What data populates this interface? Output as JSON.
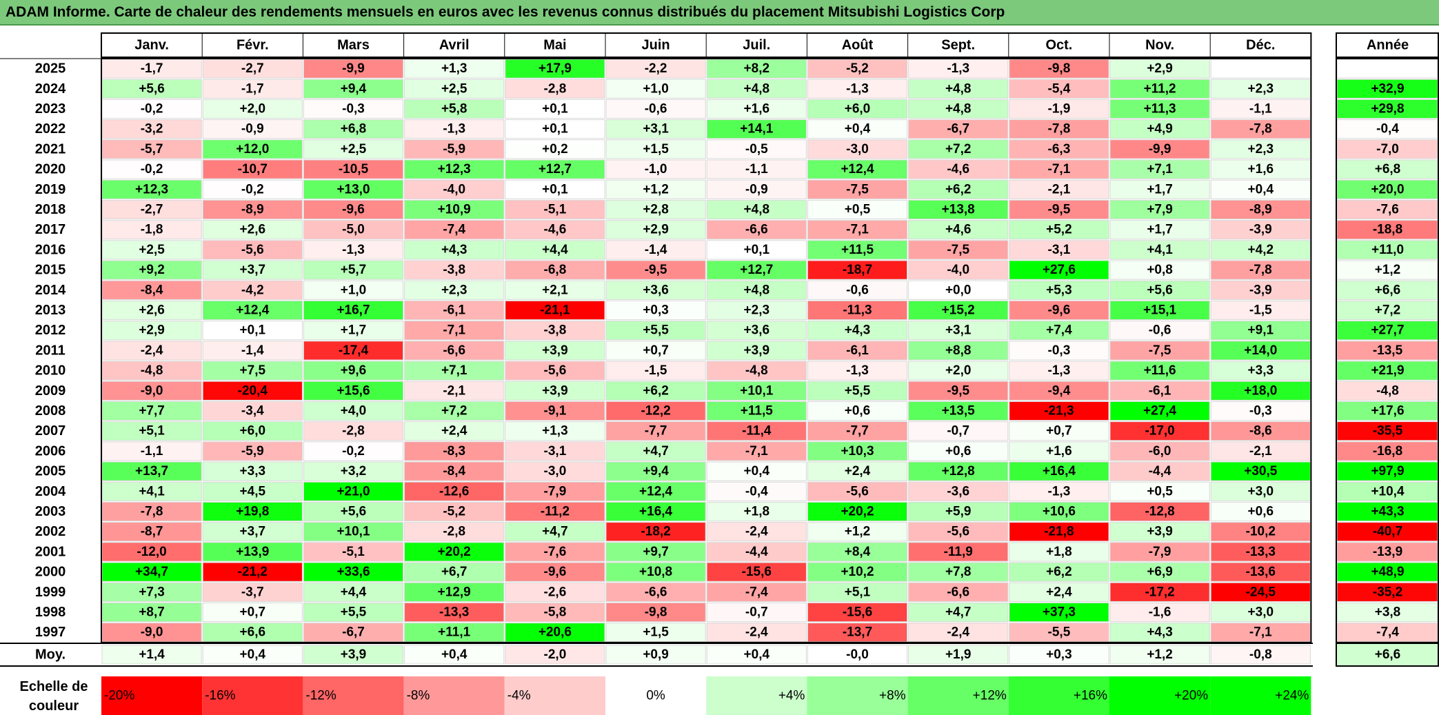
{
  "title": "ADAM Informe. Carte de chaleur des rendements mensuels en euros avec les revenus connus distribués du placement Mitsubishi Logistics Corp",
  "colors": {
    "title_bar": "#7cc97c",
    "negative_max": "#ff0000",
    "neutral": "#ffffff",
    "positive_max": "#00ff00"
  },
  "chart_data": {
    "type": "heatmap",
    "title": "ADAM Informe. Carte de chaleur des rendements mensuels en euros avec les revenus connus distribués du placement Mitsubishi Logistics Corp",
    "months": [
      "Janv.",
      "Févr.",
      "Mars",
      "Avril",
      "Mai",
      "Juin",
      "Juil.",
      "Août",
      "Sept.",
      "Oct.",
      "Nov.",
      "Déc."
    ],
    "annual_header": "Année",
    "rows": [
      {
        "year": "2025",
        "values": [
          "-1,7",
          "-2,7",
          "-9,9",
          "+1,3",
          "+17,9",
          "-2,2",
          "+8,2",
          "-5,2",
          "-1,3",
          "-9,8",
          "+2,9",
          ""
        ],
        "annual": ""
      },
      {
        "year": "2024",
        "values": [
          "+5,6",
          "-1,7",
          "+9,4",
          "+2,5",
          "-2,8",
          "+1,0",
          "+4,8",
          "-1,3",
          "+4,8",
          "-5,4",
          "+11,2",
          "+2,3"
        ],
        "annual": "+32,9"
      },
      {
        "year": "2023",
        "values": [
          "-0,2",
          "+2,0",
          "-0,3",
          "+5,8",
          "+0,1",
          "-0,6",
          "+1,6",
          "+6,0",
          "+4,8",
          "-1,9",
          "+11,3",
          "-1,1"
        ],
        "annual": "+29,8"
      },
      {
        "year": "2022",
        "values": [
          "-3,2",
          "-0,9",
          "+6,8",
          "-1,3",
          "+0,1",
          "+3,1",
          "+14,1",
          "+0,4",
          "-6,7",
          "-7,8",
          "+4,9",
          "-7,8"
        ],
        "annual": "-0,4"
      },
      {
        "year": "2021",
        "values": [
          "-5,7",
          "+12,0",
          "+2,5",
          "-5,9",
          "+0,2",
          "+1,5",
          "-0,5",
          "-3,0",
          "+7,2",
          "-6,3",
          "-9,9",
          "+2,3"
        ],
        "annual": "-7,0"
      },
      {
        "year": "2020",
        "values": [
          "-0,2",
          "-10,7",
          "-10,5",
          "+12,3",
          "+12,7",
          "-1,0",
          "-1,1",
          "+12,4",
          "-4,6",
          "-7,1",
          "+7,1",
          "+1,6"
        ],
        "annual": "+6,8"
      },
      {
        "year": "2019",
        "values": [
          "+12,3",
          "-0,2",
          "+13,0",
          "-4,0",
          "+0,1",
          "+1,2",
          "-0,9",
          "-7,5",
          "+6,2",
          "-2,1",
          "+1,7",
          "+0,4"
        ],
        "annual": "+20,0"
      },
      {
        "year": "2018",
        "values": [
          "-2,7",
          "-8,9",
          "-9,6",
          "+10,9",
          "-5,1",
          "+2,8",
          "+4,8",
          "+0,5",
          "+13,8",
          "-9,5",
          "+7,9",
          "-8,9"
        ],
        "annual": "-7,6"
      },
      {
        "year": "2017",
        "values": [
          "-1,8",
          "+2,6",
          "-5,0",
          "-7,4",
          "-4,6",
          "+2,9",
          "-6,6",
          "-7,1",
          "+4,6",
          "+5,2",
          "+1,7",
          "-3,9"
        ],
        "annual": "-18,8"
      },
      {
        "year": "2016",
        "values": [
          "+2,5",
          "-5,6",
          "-1,3",
          "+4,3",
          "+4,4",
          "-1,4",
          "+0,1",
          "+11,5",
          "-7,5",
          "-3,1",
          "+4,1",
          "+4,2"
        ],
        "annual": "+11,0"
      },
      {
        "year": "2015",
        "values": [
          "+9,2",
          "+3,7",
          "+5,7",
          "-3,8",
          "-6,8",
          "-9,5",
          "+12,7",
          "-18,7",
          "-4,0",
          "+27,6",
          "+0,8",
          "-7,8"
        ],
        "annual": "+1,2"
      },
      {
        "year": "2014",
        "values": [
          "-8,4",
          "-4,2",
          "+1,0",
          "+2,3",
          "+2,1",
          "+3,6",
          "+4,8",
          "-0,6",
          "+0,0",
          "+5,3",
          "+5,6",
          "-3,9"
        ],
        "annual": "+6,6"
      },
      {
        "year": "2013",
        "values": [
          "+2,6",
          "+12,4",
          "+16,7",
          "-6,1",
          "-21,1",
          "+0,3",
          "+2,3",
          "-11,3",
          "+15,2",
          "-9,6",
          "+15,1",
          "-1,5"
        ],
        "annual": "+7,2"
      },
      {
        "year": "2012",
        "values": [
          "+2,9",
          "+0,1",
          "+1,7",
          "-7,1",
          "-3,8",
          "+5,5",
          "+3,6",
          "+4,3",
          "+3,1",
          "+7,4",
          "-0,6",
          "+9,1"
        ],
        "annual": "+27,7"
      },
      {
        "year": "2011",
        "values": [
          "-2,4",
          "-1,4",
          "-17,4",
          "-6,6",
          "+3,9",
          "+0,7",
          "+3,9",
          "-6,1",
          "+8,8",
          "-0,3",
          "-7,5",
          "+14,0"
        ],
        "annual": "-13,5"
      },
      {
        "year": "2010",
        "values": [
          "-4,8",
          "+7,5",
          "+9,6",
          "+7,1",
          "-5,6",
          "-1,5",
          "-4,8",
          "-1,3",
          "+2,0",
          "-1,3",
          "+11,6",
          "+3,3"
        ],
        "annual": "+21,9"
      },
      {
        "year": "2009",
        "values": [
          "-9,0",
          "-20,4",
          "+15,6",
          "-2,1",
          "+3,9",
          "+6,2",
          "+10,1",
          "+5,5",
          "-9,5",
          "-9,4",
          "-6,1",
          "+18,0"
        ],
        "annual": "-4,8"
      },
      {
        "year": "2008",
        "values": [
          "+7,7",
          "-3,4",
          "+4,0",
          "+7,2",
          "-9,1",
          "-12,2",
          "+11,5",
          "+0,6",
          "+13,5",
          "-21,3",
          "+27,4",
          "-0,3"
        ],
        "annual": "+17,6"
      },
      {
        "year": "2007",
        "values": [
          "+5,1",
          "+6,0",
          "-2,8",
          "+2,4",
          "+1,3",
          "-7,7",
          "-11,4",
          "-7,7",
          "-0,7",
          "+0,7",
          "-17,0",
          "-8,6"
        ],
        "annual": "-35,5"
      },
      {
        "year": "2006",
        "values": [
          "-1,1",
          "-5,9",
          "-0,2",
          "-8,3",
          "-3,1",
          "+4,7",
          "-7,1",
          "+10,3",
          "+0,6",
          "+1,6",
          "-6,0",
          "-2,1"
        ],
        "annual": "-16,8"
      },
      {
        "year": "2005",
        "values": [
          "+13,7",
          "+3,3",
          "+3,2",
          "-8,4",
          "-3,0",
          "+9,4",
          "+0,4",
          "+2,4",
          "+12,8",
          "+16,4",
          "-4,4",
          "+30,5"
        ],
        "annual": "+97,9"
      },
      {
        "year": "2004",
        "values": [
          "+4,1",
          "+4,5",
          "+21,0",
          "-12,6",
          "-7,9",
          "+12,4",
          "-0,4",
          "-5,6",
          "-3,6",
          "-1,3",
          "+0,5",
          "+3,0"
        ],
        "annual": "+10,4"
      },
      {
        "year": "2003",
        "values": [
          "-7,8",
          "+19,8",
          "+5,6",
          "-5,2",
          "-11,2",
          "+16,4",
          "+1,8",
          "+20,2",
          "+5,9",
          "+10,6",
          "-12,8",
          "+0,6"
        ],
        "annual": "+43,3"
      },
      {
        "year": "2002",
        "values": [
          "-8,7",
          "+3,7",
          "+10,1",
          "-2,8",
          "+4,7",
          "-18,2",
          "-2,4",
          "+1,2",
          "-5,6",
          "-21,8",
          "+3,9",
          "-10,2"
        ],
        "annual": "-40,7"
      },
      {
        "year": "2001",
        "values": [
          "-12,0",
          "+13,9",
          "-5,1",
          "+20,2",
          "-7,6",
          "+9,7",
          "-4,4",
          "+8,4",
          "-11,9",
          "+1,8",
          "-7,9",
          "-13,3"
        ],
        "annual": "-13,9"
      },
      {
        "year": "2000",
        "values": [
          "+34,7",
          "-21,2",
          "+33,6",
          "+6,7",
          "-9,6",
          "+10,8",
          "-15,6",
          "+10,2",
          "+7,8",
          "+6,2",
          "+6,9",
          "-13,6"
        ],
        "annual": "+48,9"
      },
      {
        "year": "1999",
        "values": [
          "+7,3",
          "-3,7",
          "+4,4",
          "+12,9",
          "-2,6",
          "-6,6",
          "-7,4",
          "+5,1",
          "-6,6",
          "+2,4",
          "-17,2",
          "-24,5"
        ],
        "annual": "-35,2"
      },
      {
        "year": "1998",
        "values": [
          "+8,7",
          "+0,7",
          "+5,5",
          "-13,3",
          "-5,8",
          "-9,8",
          "-0,7",
          "-15,6",
          "+4,7",
          "+37,3",
          "-1,6",
          "+3,0"
        ],
        "annual": "+3,8"
      },
      {
        "year": "1997",
        "values": [
          "-9,0",
          "+6,6",
          "-6,7",
          "+11,1",
          "+20,6",
          "+1,5",
          "-2,4",
          "-13,7",
          "-2,4",
          "-5,5",
          "+4,3",
          "-7,1"
        ],
        "annual": "-7,4"
      }
    ],
    "average": {
      "label": "Moy.",
      "values": [
        "+1,4",
        "+0,4",
        "+3,9",
        "+0,4",
        "-2,0",
        "+0,9",
        "+0,4",
        "-0,0",
        "+1,9",
        "+0,3",
        "+1,2",
        "-0,8"
      ],
      "annual": "+6,6"
    },
    "color_scale": {
      "label_line1": "Echelle de",
      "label_line2": "couleur",
      "steps": [
        "-20%",
        "-16%",
        "-12%",
        "-8%",
        "-4%",
        "0%",
        "+4%",
        "+8%",
        "+12%",
        "+16%",
        "+20%",
        "+24%"
      ]
    }
  }
}
